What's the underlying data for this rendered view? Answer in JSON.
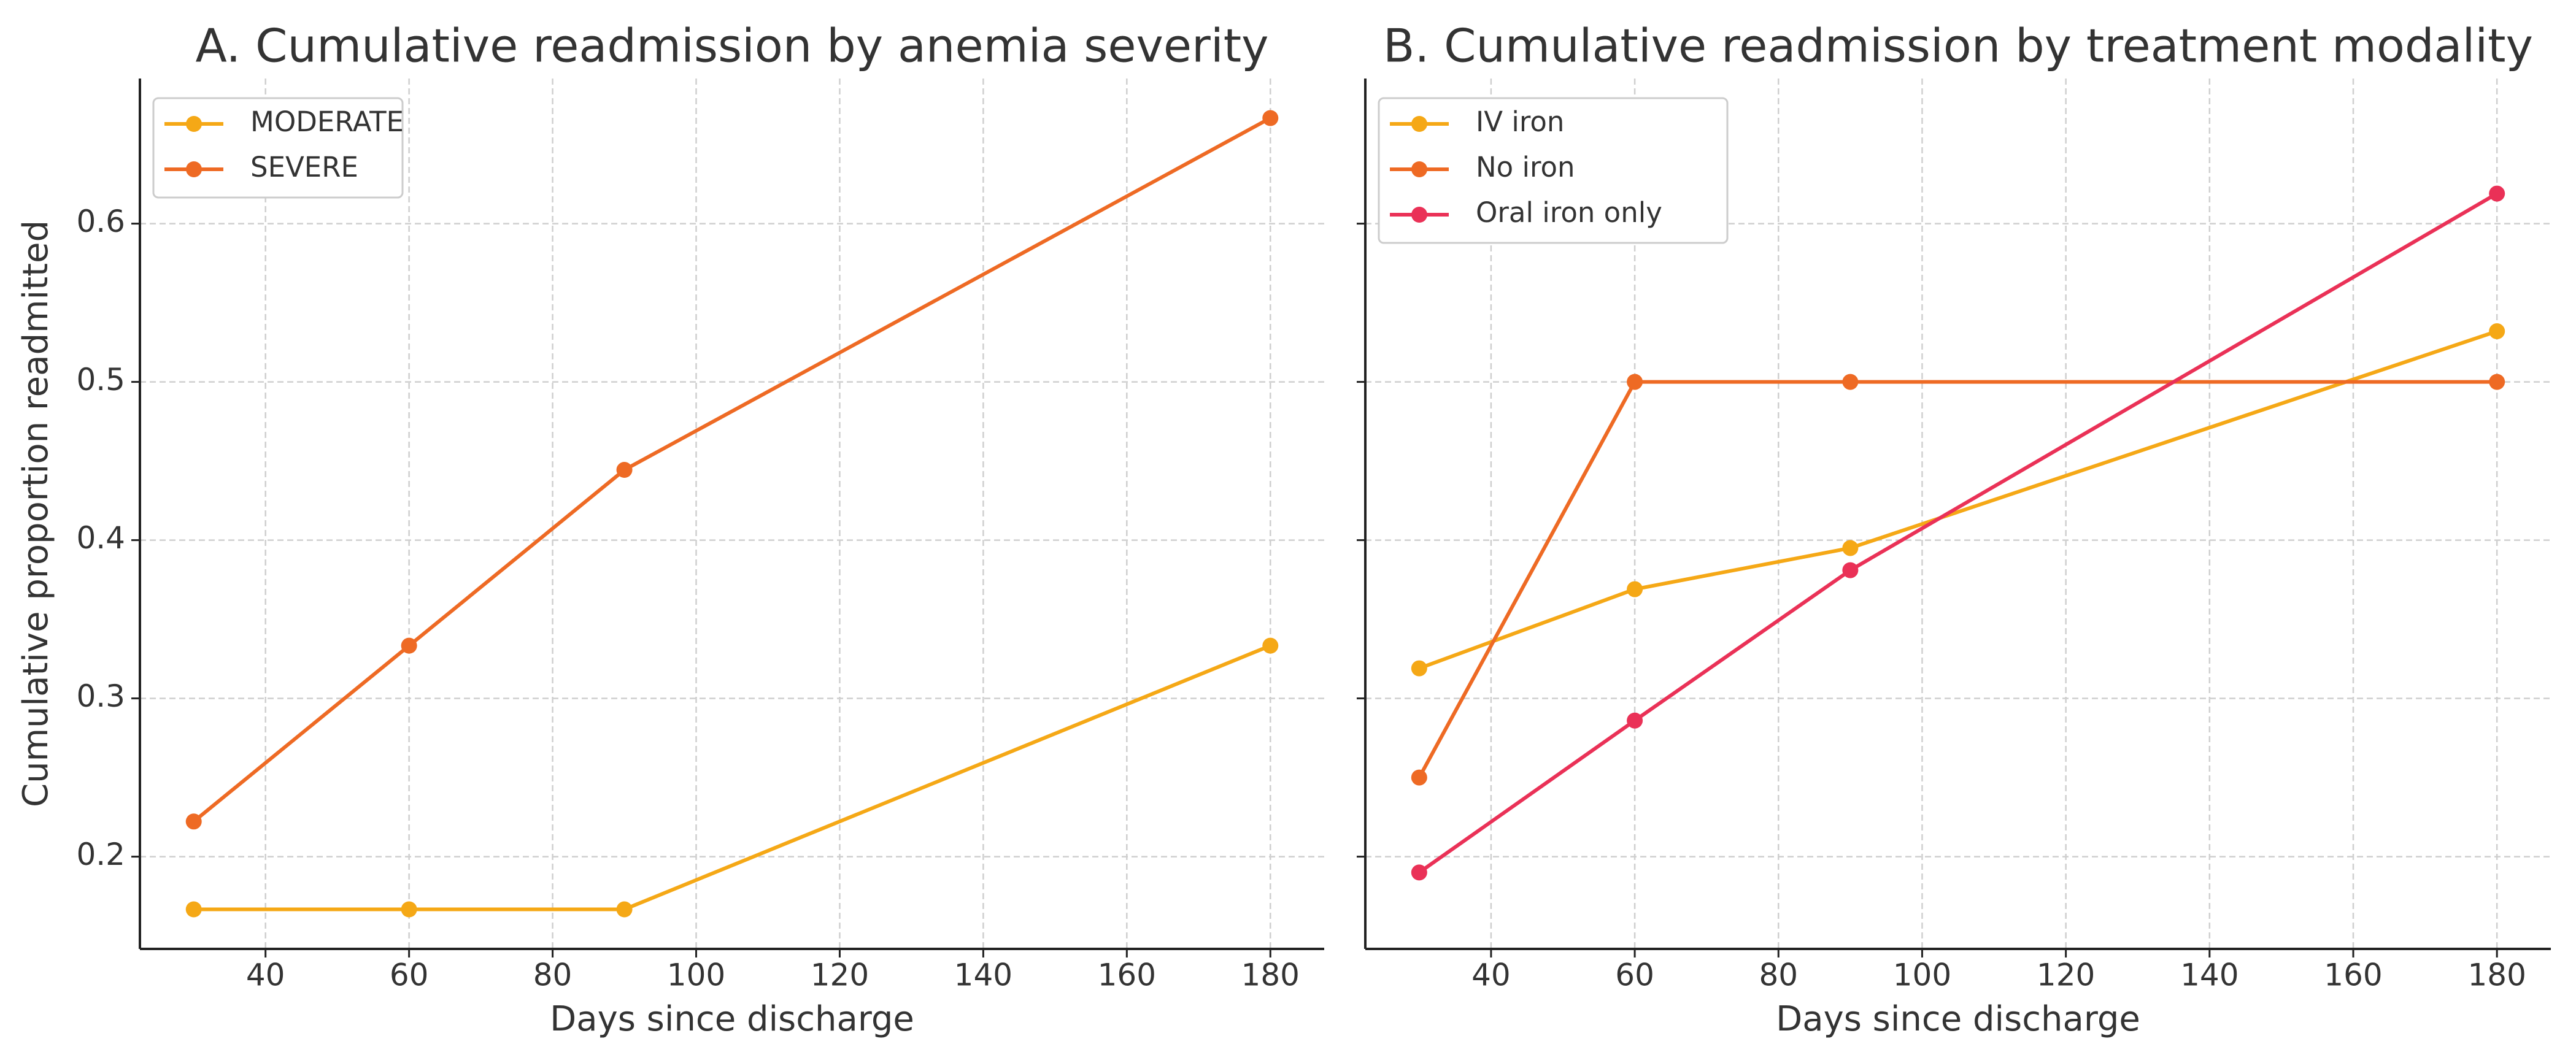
{
  "chart_data": [
    {
      "type": "line",
      "title": "A. Cumulative readmission by anemia severity",
      "xlabel": "Days since discharge",
      "ylabel": "Cumulative proportion readmitted",
      "x": [
        30,
        60,
        90,
        180
      ],
      "series": [
        {
          "name": "MODERATE",
          "color": "#f5a816",
          "values": [
            0.1667,
            0.1667,
            0.1667,
            0.3333
          ]
        },
        {
          "name": "SEVERE",
          "color": "#ee6a24",
          "values": [
            0.2222,
            0.3333,
            0.4444,
            0.6667
          ]
        }
      ],
      "xlim": [
        22.5,
        187.5
      ],
      "ylim": [
        0.1417,
        0.6917
      ],
      "xticks": [
        40,
        60,
        80,
        100,
        120,
        140,
        160,
        180
      ],
      "yticks": [
        0.2,
        0.3,
        0.4,
        0.5,
        0.6
      ],
      "grid": true,
      "legend": "upper left"
    },
    {
      "type": "line",
      "title": "B. Cumulative readmission by treatment modality",
      "xlabel": "Days since discharge",
      "x": [
        30,
        60,
        90,
        180
      ],
      "series": [
        {
          "name": "IV iron",
          "color": "#f5a816",
          "values": [
            0.319,
            0.369,
            0.395,
            0.532
          ]
        },
        {
          "name": "No iron",
          "color": "#ee6a24",
          "values": [
            0.25,
            0.5,
            0.5,
            0.5
          ]
        },
        {
          "name": "Oral iron only",
          "color": "#ea3157",
          "values": [
            0.19,
            0.286,
            0.381,
            0.619
          ]
        }
      ],
      "xlim": [
        22.5,
        187.5
      ],
      "xticks": [
        40,
        60,
        80,
        100,
        120,
        140,
        160,
        180
      ],
      "sharey": true,
      "grid": true,
      "legend": "upper left"
    }
  ]
}
